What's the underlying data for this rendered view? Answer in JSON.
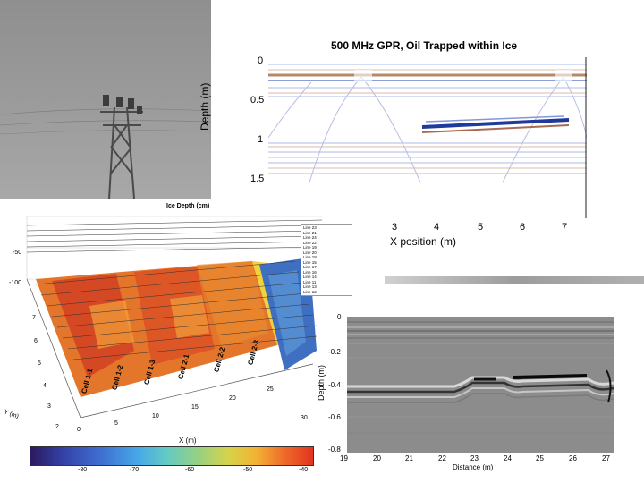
{
  "gpr_top": {
    "title": "500 MHz GPR, Oil Trapped within Ice",
    "ylabel": "Depth (m)",
    "yticks": [
      "0",
      "0.5",
      "1",
      "1.5"
    ],
    "xlabel": "X position (m)",
    "xticks": [
      "3",
      "4",
      "5",
      "6",
      "7"
    ]
  },
  "surface_3d": {
    "title": "Ice Depth (cm)",
    "zticks": [
      "-50",
      "-100"
    ],
    "yticks": [
      "7",
      "6",
      "5",
      "4",
      "3",
      "2"
    ],
    "ylabel": "Y (m)",
    "xticks": [
      "0",
      "5",
      "10",
      "15",
      "20",
      "25",
      "30"
    ],
    "xlabel": "X (m)",
    "cells": [
      "Cell 1-1",
      "Cell 1-2",
      "Cell 1-3",
      "Cell 2-1",
      "Cell 2-2",
      "Cell 2-3"
    ],
    "legend": [
      "Line 23",
      "Line 21",
      "Line 24",
      "Line 22",
      "Line 19",
      "Line 20",
      "Line 18",
      "Line 15",
      "Line 17",
      "Line 16",
      "Line 14",
      "Line 11",
      "Line 13",
      "Line 12"
    ],
    "colorbar_ticks": [
      "-80",
      "-70",
      "-60",
      "-50",
      "-40"
    ]
  },
  "gpr_bottom": {
    "ylabel": "Depth (m)",
    "yticks": [
      "0",
      "-0.2",
      "-0.4",
      "-0.6",
      "-0.8"
    ],
    "xlabel": "Distance (m)",
    "xticks": [
      "19",
      "20",
      "21",
      "22",
      "23",
      "24",
      "25",
      "26",
      "27"
    ]
  }
}
